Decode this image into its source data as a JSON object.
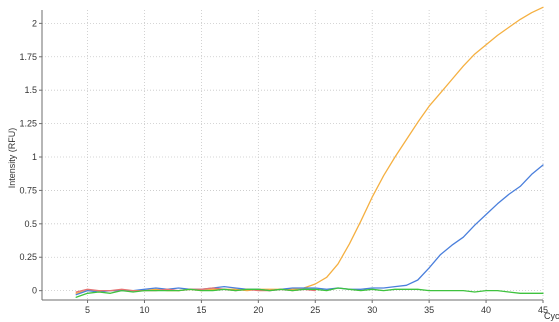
{
  "chart_data": {
    "type": "line",
    "title": "",
    "xlabel": "Cycle",
    "ylabel": "Intensity (RFU)",
    "xlim": [
      1,
      45
    ],
    "ylim": [
      -0.07,
      2.1
    ],
    "x_ticks": [
      5,
      10,
      15,
      20,
      25,
      30,
      35,
      40,
      45
    ],
    "x_tick_labels": [
      "5",
      "10",
      "15",
      "20",
      "25",
      "30",
      "35",
      "40",
      "45"
    ],
    "y_ticks": [
      0,
      0.25,
      0.5,
      0.75,
      1,
      1.25,
      1.5,
      1.75,
      2
    ],
    "y_tick_labels": [
      "0",
      "0.25",
      "0.5",
      "0.75",
      "1",
      "1.25",
      "1.5",
      "1.75",
      "2"
    ],
    "grid": true,
    "series": [
      {
        "color": "#f5b041",
        "x": [
          4,
          5,
          6,
          7,
          8,
          9,
          10,
          11,
          12,
          13,
          14,
          15,
          16,
          17,
          18,
          19,
          20,
          21,
          22,
          23,
          24,
          25,
          26,
          27,
          28,
          29,
          30,
          31,
          32,
          33,
          34,
          35,
          36,
          37,
          38,
          39,
          40,
          41,
          42,
          43,
          44,
          45
        ],
        "values": [
          -0.02,
          0.0,
          0.0,
          0.0,
          0.0,
          0.0,
          0.0,
          0.01,
          0.0,
          0.0,
          0.01,
          0.0,
          0.01,
          0.01,
          0.01,
          0.0,
          0.01,
          0.01,
          0.01,
          0.01,
          0.02,
          0.05,
          0.1,
          0.2,
          0.35,
          0.52,
          0.7,
          0.86,
          1.0,
          1.13,
          1.26,
          1.38,
          1.48,
          1.58,
          1.68,
          1.77,
          1.84,
          1.91,
          1.97,
          2.03,
          2.08,
          2.12
        ]
      },
      {
        "color": "#4a7fdc",
        "x": [
          4,
          5,
          6,
          7,
          8,
          9,
          10,
          11,
          12,
          13,
          14,
          15,
          16,
          17,
          18,
          19,
          20,
          21,
          22,
          23,
          24,
          25,
          26,
          27,
          28,
          29,
          30,
          31,
          32,
          33,
          34,
          35,
          36,
          37,
          38,
          39,
          40,
          41,
          42,
          43,
          44,
          45
        ],
        "values": [
          -0.03,
          0.0,
          -0.01,
          0.0,
          0.0,
          0.0,
          0.01,
          0.02,
          0.01,
          0.02,
          0.01,
          0.01,
          0.02,
          0.03,
          0.02,
          0.01,
          0.01,
          0.0,
          0.01,
          0.02,
          0.02,
          0.02,
          0.01,
          0.02,
          0.01,
          0.01,
          0.02,
          0.02,
          0.03,
          0.04,
          0.08,
          0.17,
          0.27,
          0.34,
          0.4,
          0.49,
          0.57,
          0.65,
          0.72,
          0.78,
          0.87,
          0.94
        ]
      },
      {
        "color": "#e57373",
        "x": [
          4,
          5,
          6,
          7,
          8,
          9,
          10,
          11,
          12,
          13,
          14,
          15,
          16,
          17,
          18,
          19,
          20,
          21,
          22,
          23,
          24,
          25
        ],
        "values": [
          -0.01,
          0.01,
          0.0,
          0.0,
          0.01,
          0.0,
          0.0,
          0.0,
          0.01,
          0.0,
          0.01,
          0.01,
          0.02,
          0.01,
          0.0,
          0.01,
          0.0,
          0.0,
          0.01,
          0.0,
          0.01,
          0.0
        ]
      },
      {
        "color": "#3ec23e",
        "x": [
          4,
          5,
          6,
          7,
          8,
          9,
          10,
          11,
          12,
          13,
          14,
          15,
          16,
          17,
          18,
          19,
          20,
          21,
          22,
          23,
          24,
          25,
          26,
          27,
          28,
          29,
          30,
          31,
          32,
          33,
          34,
          35,
          36,
          37,
          38,
          39,
          40,
          41,
          42,
          43,
          44,
          45
        ],
        "values": [
          -0.05,
          -0.02,
          -0.01,
          -0.02,
          0.0,
          -0.01,
          0.0,
          0.0,
          0.0,
          0.0,
          0.01,
          0.0,
          0.0,
          0.01,
          0.0,
          0.01,
          0.01,
          0.0,
          0.01,
          0.0,
          0.01,
          0.01,
          0.0,
          0.02,
          0.01,
          0.0,
          0.01,
          0.0,
          0.01,
          0.01,
          0.01,
          0.0,
          0.0,
          0.0,
          0.0,
          -0.01,
          0.0,
          0.0,
          -0.01,
          -0.02,
          -0.02,
          -0.02
        ]
      }
    ]
  }
}
